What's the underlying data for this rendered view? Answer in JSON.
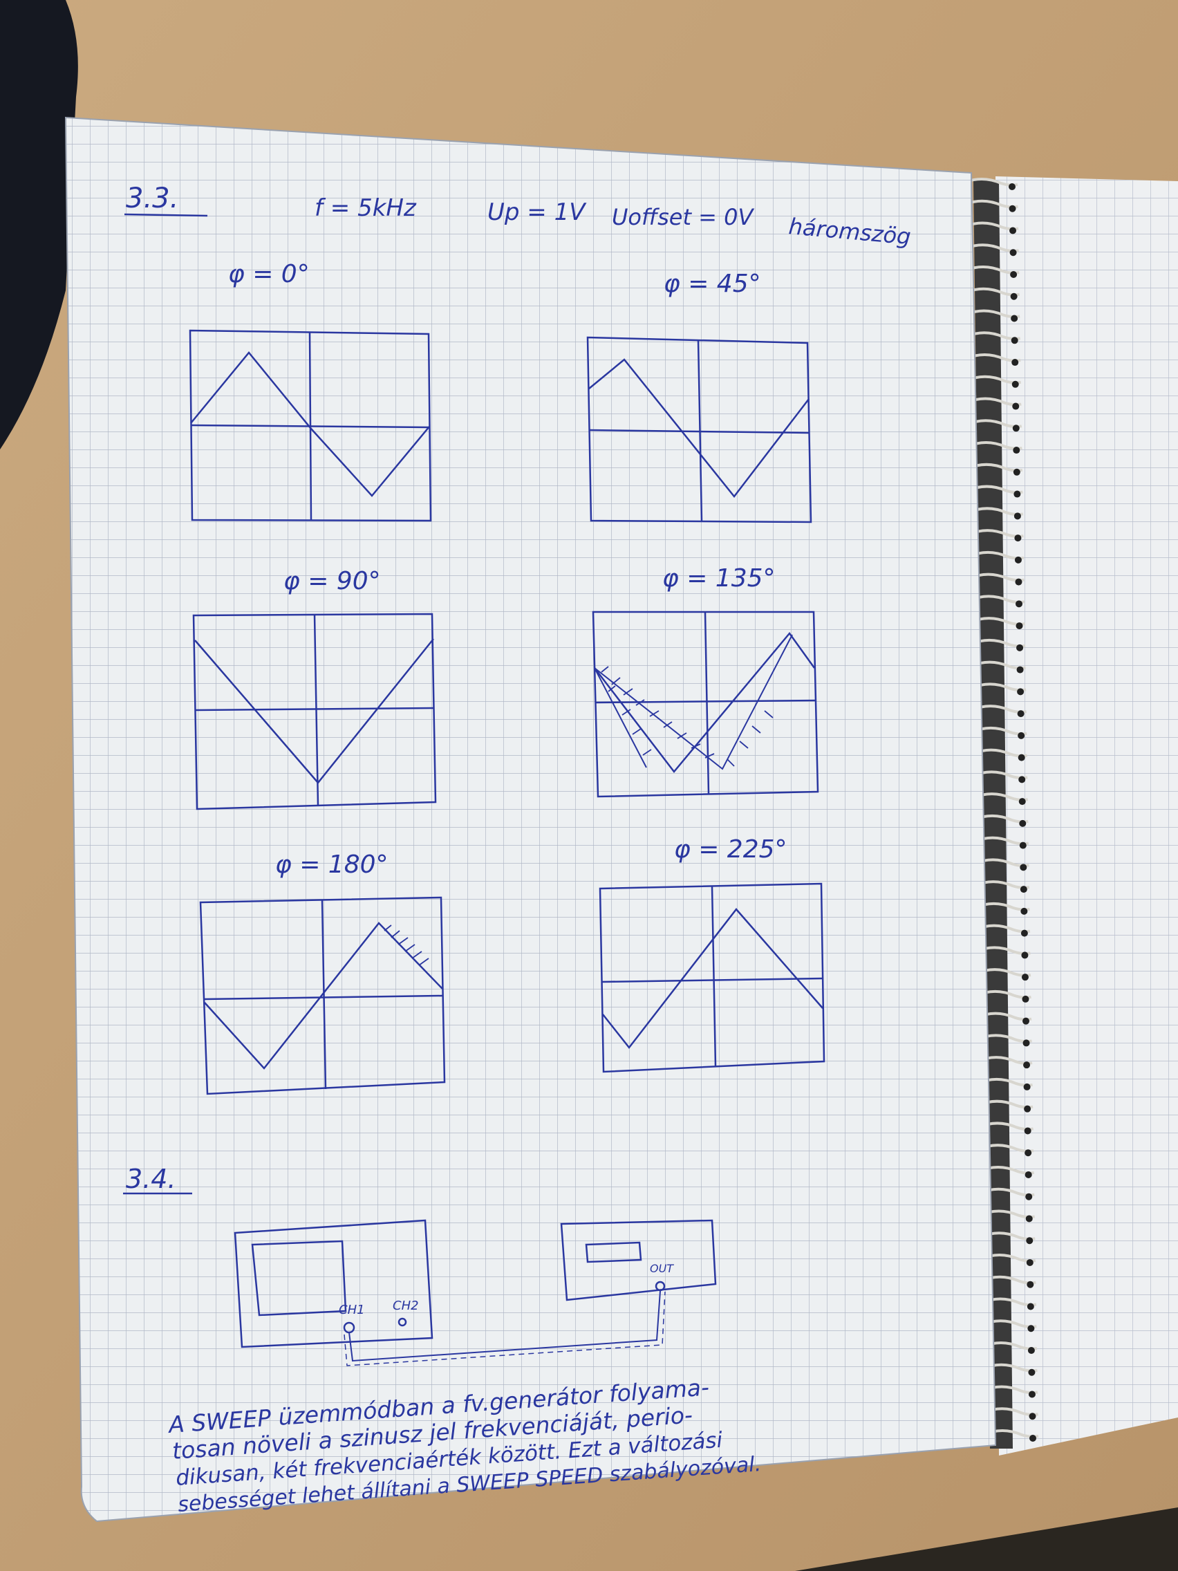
{
  "section_1": {
    "number": "3.3.",
    "params": {
      "frequency": "f = 5kHz",
      "amplitude": "Up = 1V",
      "offset": "Uoffset = 0V",
      "waveform": "háromszög"
    },
    "plots": [
      {
        "label": "φ = 0°"
      },
      {
        "label": "φ = 45°"
      },
      {
        "label": "φ = 90°"
      },
      {
        "label": "φ = 135°"
      },
      {
        "label": "φ = 180°"
      },
      {
        "label": "φ = 225°"
      }
    ]
  },
  "section_2": {
    "number": "3.4.",
    "scope_ch1": "CH1",
    "scope_ch2": "CH2",
    "generator_out": "OUT",
    "text_lines": [
      "A SWEEP üzemmódban a fv.generátor folyama-",
      "tosan növeli a szinusz jel frekvenciáját, perio-",
      "dikusan, két frekvenciaérték között. Ezt a változási",
      "sebességet lehet állítani a SWEEP SPEED szabályozóval."
    ]
  },
  "colors": {
    "ink": "#2a37a0",
    "paper": "#eef0f1",
    "grid": "#aeb4c3",
    "desk": "#c4a57d"
  }
}
